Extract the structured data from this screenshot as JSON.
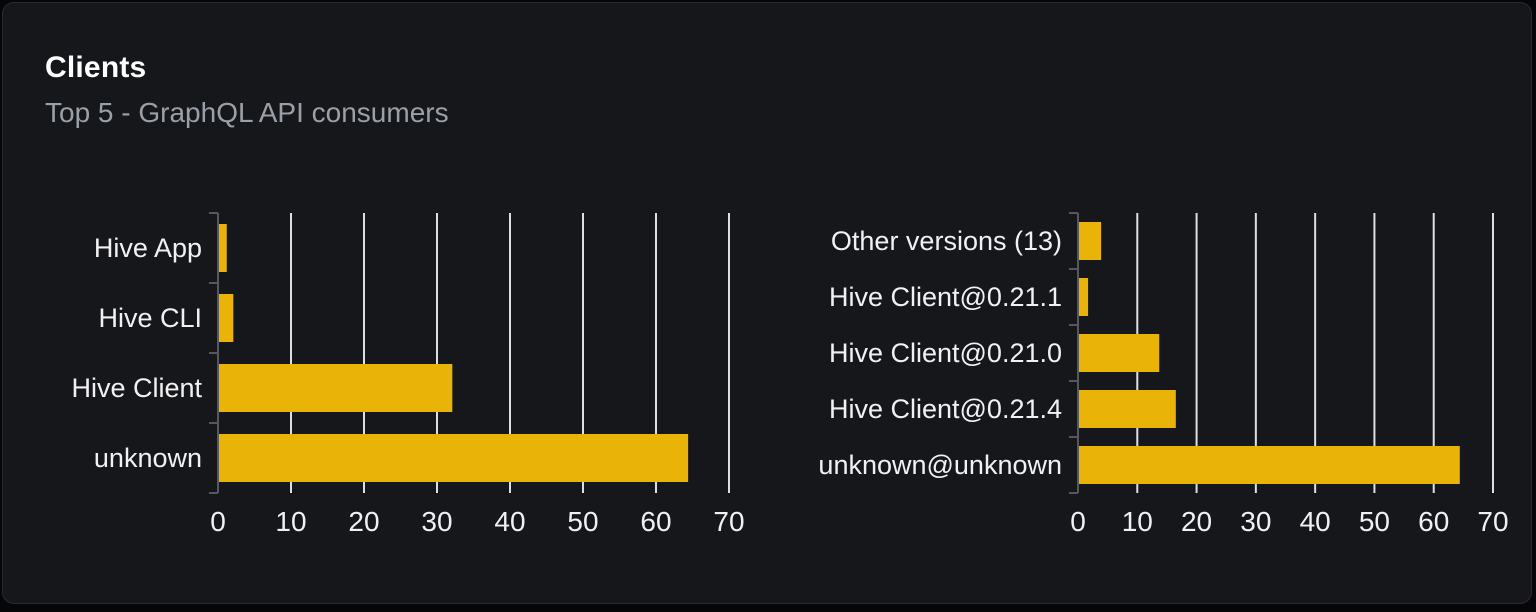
{
  "card": {
    "title": "Clients",
    "subtitle": "Top 5 - GraphQL API consumers"
  },
  "colors": {
    "bar": "#eab308",
    "grid": "#dcdfe4",
    "axis": "#56575f",
    "label": "#f1f1f3",
    "tick_label": "#f1f1f3",
    "title": "#ffffff",
    "subtitle": "#9aa0a8",
    "card_bg": "#16171b",
    "card_border": "#2a2b31",
    "page_bg": "#060608"
  },
  "chart_data": [
    {
      "type": "bar",
      "orientation": "horizontal",
      "name": "clients-by-name",
      "categories": [
        "Hive App",
        "Hive CLI",
        "Hive Client",
        "unknown"
      ],
      "values": [
        1.2,
        2.1,
        32.1,
        64.4
      ],
      "xlim": [
        0,
        70
      ],
      "xticks": [
        0,
        10,
        20,
        30,
        40,
        50,
        60,
        70
      ],
      "grid": true,
      "legend": false,
      "title": "",
      "xlabel": "",
      "ylabel": ""
    },
    {
      "type": "bar",
      "orientation": "horizontal",
      "name": "clients-by-version",
      "categories": [
        "Other versions (13)",
        "Hive Client@0.21.1",
        "Hive Client@0.21.0",
        "Hive Client@0.21.4",
        "unknown@unknown"
      ],
      "values": [
        3.9,
        1.7,
        13.7,
        16.5,
        64.4
      ],
      "xlim": [
        0,
        70
      ],
      "xticks": [
        0,
        10,
        20,
        30,
        40,
        50,
        60,
        70
      ],
      "grid": true,
      "legend": false,
      "title": "",
      "xlabel": "",
      "ylabel": ""
    }
  ]
}
